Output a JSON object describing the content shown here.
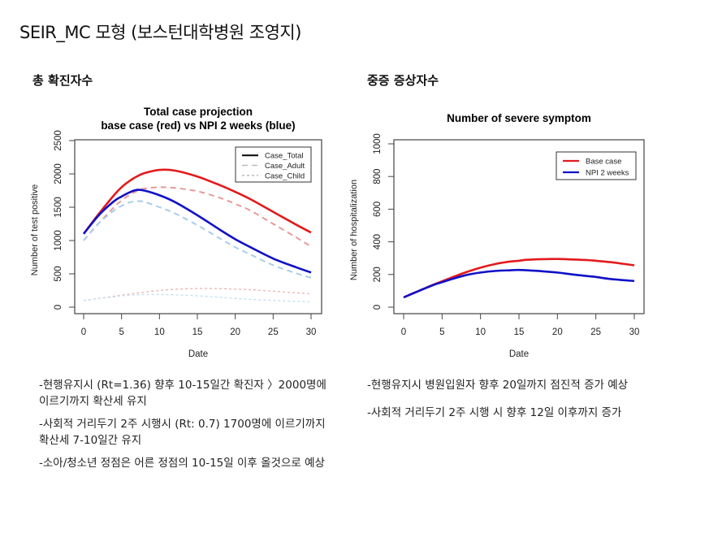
{
  "page": {
    "title": "SEIR_MC 모형 (보스턴대학병원 조영지)",
    "left_section": "총 확진자수",
    "right_section": "중증 증상자수",
    "left_notes": [
      "-현행유지시 (Rt=1.36) 향후 10-15일간 확진자 〉2000명에 이르기까지 확산세 유지",
      "-사회적 거리두기 2주 시행시 (Rt: 0.7) 1700명에 이르기까지 확산세 7-10일간 유지",
      "-소아/청소년 정점은 어른 정점의 10-15일 이후 올것으로 예상"
    ],
    "right_notes": [
      "-현행유지시 병원입원자 향후 20일까지 점진적 증가 예상",
      "-사회적 거리두기 2주 시행 시 향후 12일 이후까지 증가"
    ]
  },
  "chart_data": [
    {
      "type": "line",
      "title": "Total case projection",
      "subtitle": "base case (red) vs NPI 2 weeks (blue)",
      "xlabel": "Date",
      "ylabel": "Number of test positive",
      "xlim": [
        0,
        30
      ],
      "ylim": [
        0,
        2500
      ],
      "xticks": [
        "0",
        "5",
        "10",
        "15",
        "20",
        "25",
        "30"
      ],
      "yticks": [
        "0",
        "500",
        "1000",
        "1500",
        "2000",
        "2500"
      ],
      "grid": false,
      "legend_position": "top-right",
      "legend": [
        {
          "label": "Case_Total",
          "style": "solid"
        },
        {
          "label": "Case_Adult",
          "style": "dashed"
        },
        {
          "label": "Case_Child",
          "style": "dotted"
        }
      ],
      "x": [
        0,
        2,
        4,
        5,
        6,
        7,
        8,
        10,
        12,
        15,
        18,
        20,
        22,
        25,
        28,
        30
      ],
      "series": [
        {
          "name": "Base case Total",
          "color": "#e31a1c",
          "style": "solid",
          "values": [
            1100,
            1400,
            1680,
            1800,
            1890,
            1960,
            2010,
            2060,
            2050,
            1960,
            1830,
            1730,
            1620,
            1430,
            1240,
            1120
          ]
        },
        {
          "name": "Base case Adult",
          "color": "#e89a9a",
          "style": "dashed",
          "values": [
            1000,
            1260,
            1500,
            1600,
            1680,
            1740,
            1780,
            1800,
            1790,
            1740,
            1640,
            1550,
            1450,
            1250,
            1050,
            910
          ]
        },
        {
          "name": "Base case Child",
          "color": "#f0b0b0",
          "style": "dotted",
          "values": [
            100,
            130,
            165,
            180,
            195,
            210,
            225,
            250,
            268,
            280,
            278,
            270,
            262,
            240,
            215,
            200
          ]
        },
        {
          "name": "NPI 2 weeks Total",
          "color": "#1010c8",
          "style": "solid",
          "values": [
            1100,
            1380,
            1590,
            1660,
            1720,
            1760,
            1750,
            1680,
            1580,
            1380,
            1160,
            1020,
            900,
            730,
            600,
            520
          ]
        },
        {
          "name": "NPI 2 weeks Adult",
          "color": "#a8cde8",
          "style": "dashed",
          "values": [
            1000,
            1260,
            1450,
            1520,
            1570,
            1590,
            1580,
            1500,
            1410,
            1230,
            1030,
            900,
            790,
            630,
            510,
            440
          ]
        },
        {
          "name": "NPI 2 weeks Child",
          "color": "#c0dff0",
          "style": "dotted",
          "values": [
            100,
            130,
            155,
            170,
            178,
            185,
            188,
            190,
            185,
            170,
            148,
            130,
            118,
            100,
            88,
            80
          ]
        }
      ]
    },
    {
      "type": "line",
      "title": "Number of severe symptom",
      "xlabel": "Date",
      "ylabel": "Number of hospitalization",
      "xlim": [
        0,
        30
      ],
      "ylim": [
        0,
        1000
      ],
      "xticks": [
        "0",
        "5",
        "10",
        "15",
        "20",
        "25",
        "30"
      ],
      "yticks": [
        "0",
        "200",
        "400",
        "600",
        "800",
        "1000"
      ],
      "grid": false,
      "legend_position": "top-right",
      "legend": [
        {
          "label": "Base case",
          "color": "#e31a1c"
        },
        {
          "label": "NPI 2 weeks",
          "color": "#1010c8"
        }
      ],
      "x": [
        0,
        2,
        4,
        5,
        6,
        8,
        10,
        12,
        14,
        15,
        16,
        18,
        20,
        22,
        24,
        25,
        27,
        30
      ],
      "series": [
        {
          "name": "Base case",
          "color": "#e31a1c",
          "style": "solid",
          "values": [
            60,
            100,
            140,
            158,
            177,
            212,
            242,
            265,
            280,
            284,
            290,
            294,
            295,
            292,
            288,
            284,
            275,
            256
          ]
        },
        {
          "name": "NPI 2 weeks",
          "color": "#1010c8",
          "style": "solid",
          "values": [
            60,
            100,
            138,
            153,
            168,
            195,
            212,
            222,
            226,
            228,
            226,
            220,
            212,
            200,
            190,
            185,
            172,
            160
          ]
        }
      ]
    }
  ]
}
